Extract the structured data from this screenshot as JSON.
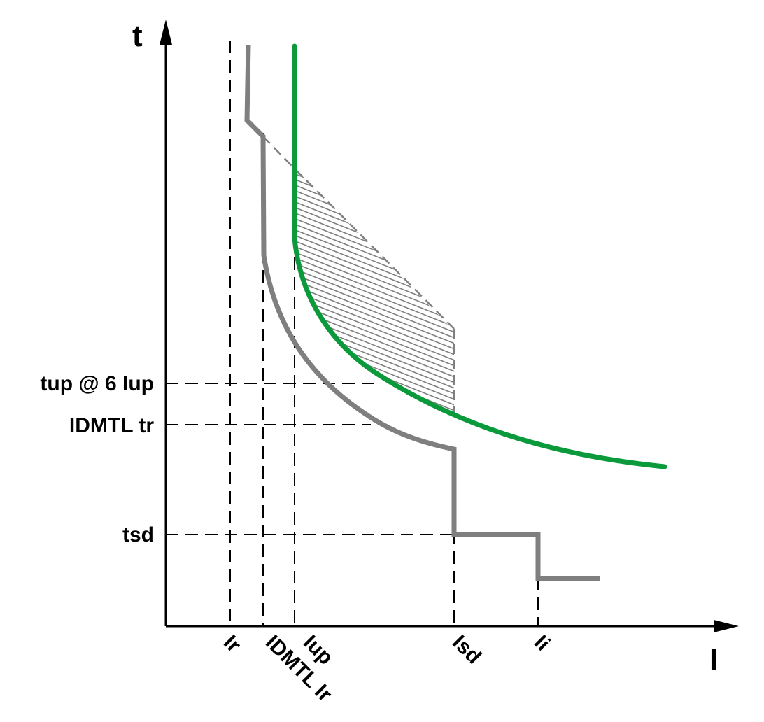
{
  "diagram": {
    "axes": {
      "y_label": "t",
      "x_label": "I"
    },
    "time_labels": {
      "tup": "tup @ 6 Iup",
      "idmtl_tr": "IDMTL tr",
      "tsd": "tsd"
    },
    "current_labels": {
      "ir": "Ir",
      "idmtl_ir": "IDMTL Ir",
      "iup": "Iup",
      "isd": "Isd",
      "ii": "Ii"
    },
    "colors": {
      "protection_curve": "#7f7f7f",
      "upstream_curve": "#0a9a3c",
      "hatch": "#7f7f7f",
      "axis": "#000000"
    }
  }
}
